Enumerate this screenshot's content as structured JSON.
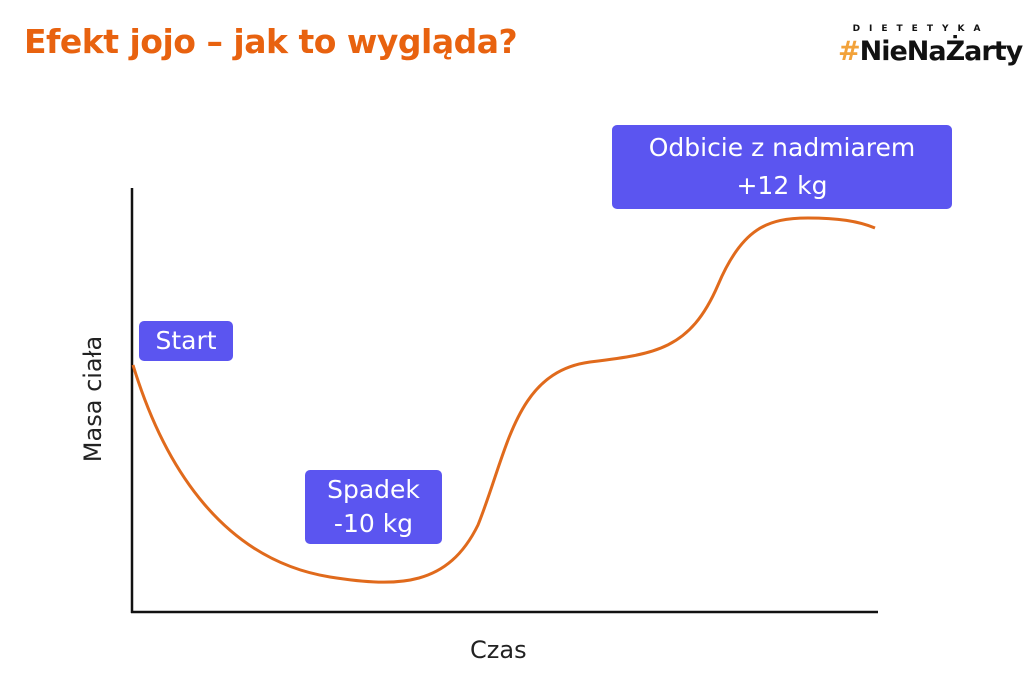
{
  "title": "Efekt jojo – jak to wygląda?",
  "logo": {
    "top": "DIETETYKA",
    "hash": "#",
    "name": "NieNaŻarty"
  },
  "axes": {
    "x_label": "Czas",
    "y_label": "Masa ciała"
  },
  "annotations": {
    "start": "Start",
    "drop": [
      "Spadek",
      "-10 kg"
    ],
    "rebound": [
      "Odbicie z nadmiarem",
      "+12 kg"
    ]
  },
  "colors": {
    "title": "#E8620F",
    "curve": "#E06A1C",
    "label_bg": "#5B55F0",
    "axis": "#111111"
  }
}
